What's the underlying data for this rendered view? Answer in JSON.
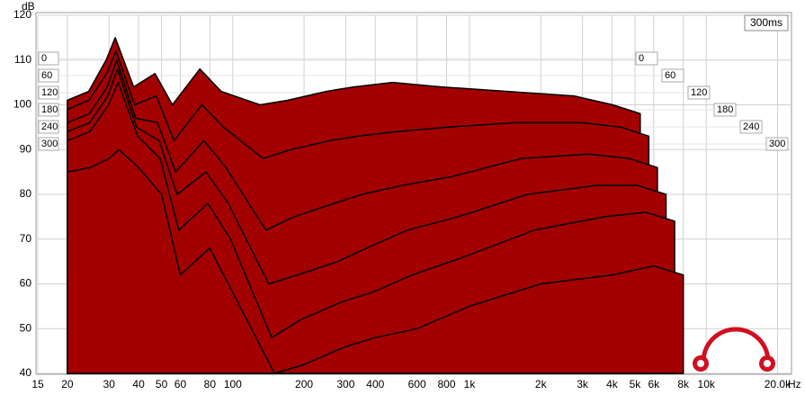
{
  "chart_data": {
    "type": "waterfall",
    "y_label": "dB",
    "x_label": "Hz",
    "time_span_label": "300ms",
    "xscale": "log",
    "xlim": [
      15,
      21000
    ],
    "ylim": [
      40,
      120
    ],
    "xticks": [
      15,
      20,
      30,
      40,
      50,
      60,
      80,
      100,
      200,
      300,
      400,
      600,
      800,
      {
        "value": 1000,
        "label": "1k"
      },
      {
        "value": 2000,
        "label": "2k"
      },
      {
        "value": 3000,
        "label": "3k"
      },
      {
        "value": 4000,
        "label": "4k"
      },
      {
        "value": 5000,
        "label": "5k"
      },
      {
        "value": 6000,
        "label": "6k"
      },
      {
        "value": 8000,
        "label": "8k"
      },
      {
        "value": 10000,
        "label": "10k"
      },
      {
        "value": 20000,
        "label": "20.0k"
      }
    ],
    "yticks": [
      40,
      50,
      60,
      70,
      80,
      90,
      100,
      110,
      120
    ],
    "zticks": [
      0,
      60,
      120,
      180,
      240,
      300
    ],
    "grid": true,
    "color": "#a30000",
    "x": [
      20,
      25,
      30,
      33,
      40,
      50,
      60,
      80,
      100,
      150,
      200,
      300,
      400,
      600,
      1000,
      2000,
      4000,
      6000,
      8000
    ],
    "series": [
      {
        "values": [
          101,
          103,
          110,
          115,
          104,
          107,
          100,
          108,
          103,
          100,
          101,
          103,
          104,
          105,
          104,
          103,
          102,
          100,
          98
        ]
      },
      {
        "values": [
          99,
          101,
          107,
          112,
          100,
          102,
          92,
          100,
          95,
          88,
          90,
          92,
          93,
          94,
          95,
          96,
          96,
          95,
          93
        ]
      },
      {
        "values": [
          96,
          98,
          104,
          110,
          97,
          96,
          85,
          92,
          86,
          72,
          75,
          78,
          80,
          82,
          84,
          88,
          89,
          88,
          86
        ]
      },
      {
        "values": [
          94,
          96,
          102,
          108,
          95,
          92,
          80,
          85,
          78,
          60,
          62,
          65,
          68,
          72,
          75,
          80,
          82,
          82,
          80
        ]
      },
      {
        "values": [
          92,
          94,
          100,
          105,
          93,
          88,
          72,
          78,
          70,
          48,
          52,
          56,
          58,
          62,
          66,
          72,
          75,
          76,
          74
        ]
      },
      {
        "values": [
          85,
          86,
          88,
          90,
          86,
          80,
          62,
          68,
          58,
          40,
          42,
          46,
          48,
          50,
          55,
          60,
          62,
          64,
          62
        ]
      }
    ]
  }
}
